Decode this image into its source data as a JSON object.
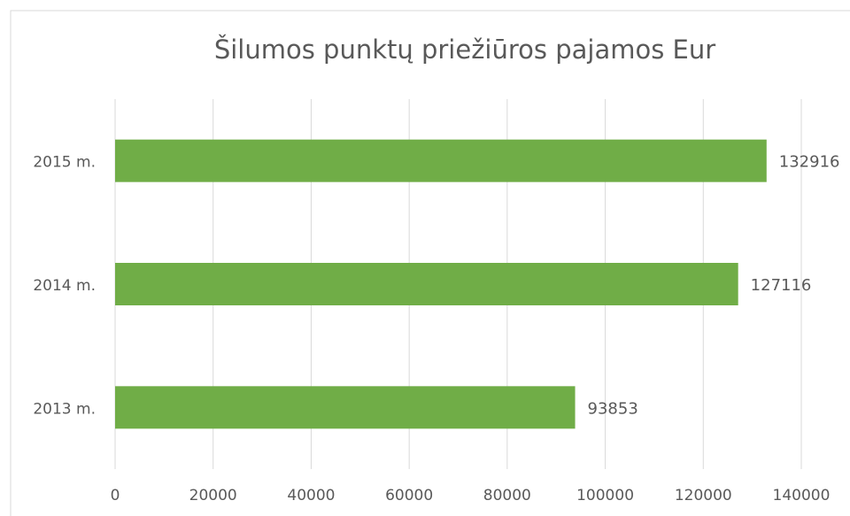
{
  "chart_data": {
    "type": "hbar",
    "title": "Šilumos punktų priežiūros pajamos Eur",
    "categories": [
      "2015 m.",
      "2014 m.",
      "2013 m."
    ],
    "values": [
      132916,
      127116,
      93853
    ],
    "color": "#70ad47",
    "xlim": [
      0,
      140000
    ],
    "xticks": [
      0,
      20000,
      40000,
      60000,
      80000,
      100000,
      120000,
      140000
    ],
    "grid": true
  }
}
